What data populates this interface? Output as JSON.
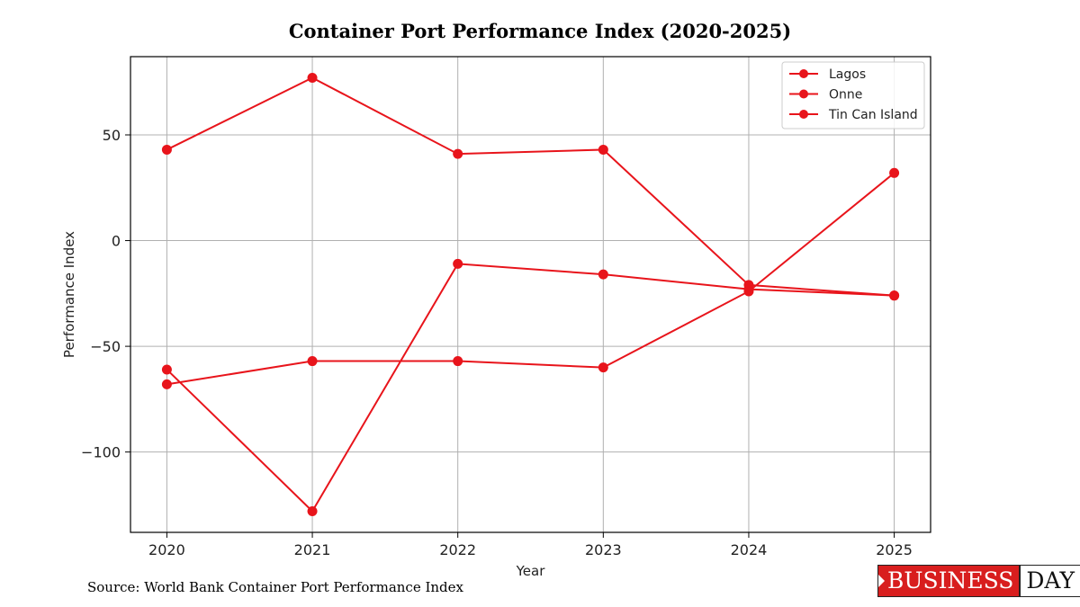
{
  "chart_data": {
    "type": "line",
    "title": "Container Port Performance Index (2020-2025)",
    "xlabel": "Year",
    "ylabel": "Performance Index",
    "x": [
      2020,
      2021,
      2022,
      2023,
      2024,
      2025
    ],
    "x_tick_labels": [
      "2020",
      "2021",
      "2022",
      "2023",
      "2024",
      "2025"
    ],
    "y_ticks": [
      50,
      0,
      -50,
      -100
    ],
    "y_tick_labels": [
      "50",
      "0",
      "−50",
      "−100"
    ],
    "xlim": [
      2019.75,
      2025.25
    ],
    "ylim": [
      -138,
      87
    ],
    "grid": true,
    "legend_position": "top-right",
    "series": [
      {
        "name": "Lagos",
        "values": [
          43,
          77,
          41,
          43,
          -21,
          -26
        ],
        "color": "#e8141b"
      },
      {
        "name": "Onne",
        "values": [
          -61,
          -128,
          -11,
          -16,
          -23,
          -26
        ],
        "color": "#e8141b"
      },
      {
        "name": "Tin Can Island",
        "values": [
          -68,
          -57,
          -57,
          -60,
          -24,
          32
        ],
        "color": "#e8141b"
      }
    ]
  },
  "source": "Source: World Bank Container Port Performance Index",
  "logo": {
    "left": "BUSINESS",
    "right": "DAY"
  }
}
